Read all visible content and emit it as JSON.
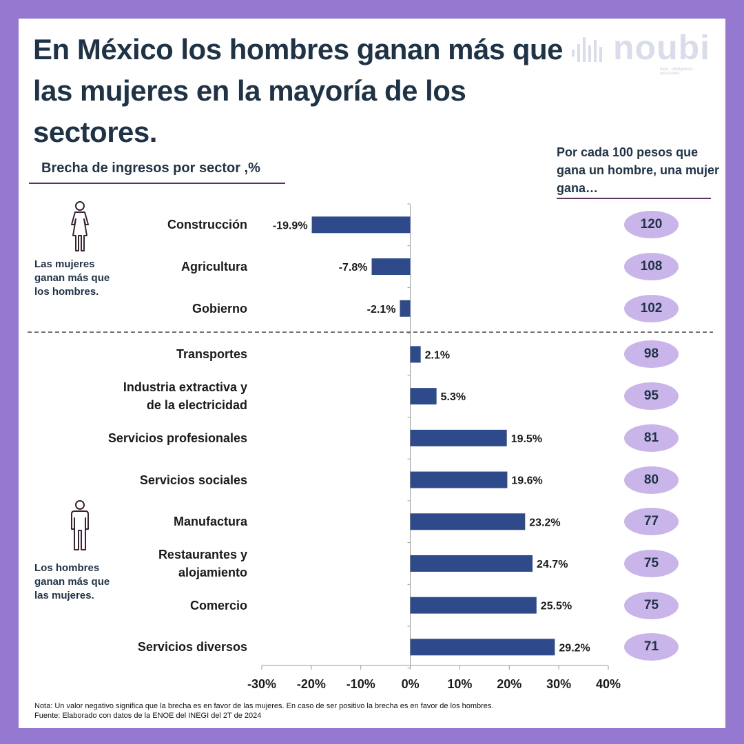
{
  "title": "En México los hombres ganan más que las mujeres en la mayoría de los sectores.",
  "logo": {
    "text": "noubi",
    "tagline": "data · inteligencia · soluciones"
  },
  "subtitle": "Brecha de ingresos por sector ,%",
  "side_header": "Por cada 100 pesos que gana un hombre, una mujer gana…",
  "notes": {
    "women": "Las mujeres ganan más que los hombres.",
    "men": "Los hombres ganan más que las mujeres."
  },
  "footnotes": {
    "note": "Nota: Un valor negativo significa que la brecha es en favor de las mujeres. En caso de ser positivo la brecha es en favor de los hombres.",
    "source": "Fuente: Elaborado con datos de la ENOE del INEGI del 2T de 2024"
  },
  "colors": {
    "bar": "#2e4a8a",
    "pill": "#c9b5ea",
    "background": "#9579d1",
    "title": "#1f3347",
    "accent_line": "#5a3361"
  },
  "icons": [
    "woman-icon",
    "man-icon",
    "noubi-logo-icon"
  ],
  "chart_data": {
    "type": "bar",
    "orientation": "horizontal",
    "categories": [
      "Construcción",
      "Agricultura",
      "Gobierno",
      "Transportes",
      "Industria extractiva y de la electricidad",
      "Servicios profesionales",
      "Servicios sociales",
      "Manufactura",
      "Restaurantes y alojamiento",
      "Comercio",
      "Servicios diversos"
    ],
    "values": [
      -19.9,
      -7.8,
      -2.1,
      2.1,
      5.3,
      19.5,
      19.6,
      23.2,
      24.7,
      25.5,
      29.2
    ],
    "value_labels": [
      "-19.9%",
      "-7.8%",
      "-2.1%",
      "2.1%",
      "5.3%",
      "19.5%",
      "19.6%",
      "23.2%",
      "24.7%",
      "25.5%",
      "29.2%"
    ],
    "women_earn_per_100": [
      120,
      108,
      102,
      98,
      95,
      81,
      80,
      77,
      75,
      75,
      71
    ],
    "xlim": [
      -30,
      40
    ],
    "xticks": [
      -30,
      -20,
      -10,
      0,
      10,
      20,
      30,
      40
    ],
    "xtick_labels": [
      "-30%",
      "-20%",
      "-10%",
      "0%",
      "10%",
      "20%",
      "30%",
      "40%"
    ],
    "separator_after_index": 2,
    "grid": false
  }
}
